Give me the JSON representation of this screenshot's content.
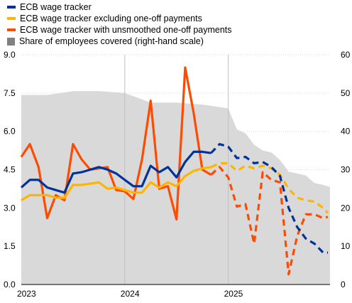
{
  "colors": {
    "wage": "#003299",
    "excl": "#ffb400",
    "unsm": "#ff4b00",
    "share": "#d9d9d9",
    "grid": "#d9d9d9",
    "separator": "#bfbfbf"
  },
  "chart_data": {
    "type": "line",
    "legend_position": "top-left",
    "grid": true,
    "x_tick_labels": [
      "2023",
      "2024",
      "2025"
    ],
    "x_range": [
      "2023-01",
      "2025-12"
    ],
    "y_left": {
      "range": [
        0.0,
        9.0
      ],
      "ticks": [
        "0.0",
        "1.5",
        "3.0",
        "4.5",
        "6.0",
        "7.5",
        "9.0"
      ]
    },
    "y_right": {
      "range": [
        0,
        60
      ],
      "ticks": [
        "0",
        "10",
        "20",
        "30",
        "40",
        "50",
        "60"
      ]
    },
    "series": [
      {
        "key": "wage",
        "name": "ECB wage tracker",
        "axis": "left",
        "style": "line",
        "points": [
          [
            "2023-01",
            3.8
          ],
          [
            "2023-02",
            4.1
          ],
          [
            "2023-03",
            4.1
          ],
          [
            "2023-04",
            3.8
          ],
          [
            "2023-05",
            3.7
          ],
          [
            "2023-06",
            3.6
          ],
          [
            "2023-07",
            4.35
          ],
          [
            "2023-08",
            4.4
          ],
          [
            "2023-09",
            4.5
          ],
          [
            "2023-10",
            4.6
          ],
          [
            "2023-11",
            4.5
          ],
          [
            "2023-12",
            4.35
          ],
          [
            "2024-01",
            4.1
          ],
          [
            "2024-02",
            3.85
          ],
          [
            "2024-03",
            3.85
          ],
          [
            "2024-04",
            4.65
          ],
          [
            "2024-05",
            4.4
          ],
          [
            "2024-06",
            4.6
          ],
          [
            "2024-07",
            4.2
          ],
          [
            "2024-08",
            4.8
          ],
          [
            "2024-09",
            5.2
          ],
          [
            "2024-10",
            5.2
          ],
          [
            "2024-11",
            5.15
          ]
        ]
      },
      {
        "key": "wage",
        "name": "",
        "axis": "left",
        "style": "dashed",
        "points": [
          [
            "2024-11",
            5.15
          ],
          [
            "2024-12",
            5.5
          ],
          [
            "2025-01",
            5.4
          ],
          [
            "2025-02",
            4.95
          ],
          [
            "2025-03",
            5.0
          ],
          [
            "2025-04",
            4.75
          ],
          [
            "2025-05",
            4.8
          ],
          [
            "2025-06",
            4.6
          ],
          [
            "2025-07",
            4.25
          ],
          [
            "2025-08",
            3.0
          ],
          [
            "2025-09",
            2.25
          ],
          [
            "2025-10",
            1.8
          ],
          [
            "2025-11",
            1.6
          ],
          [
            "2025-12",
            1.25
          ],
          [
            "2026-01",
            1.25
          ]
        ]
      },
      {
        "key": "excl",
        "name": "ECB wage tracker excluding one-off payments",
        "axis": "left",
        "style": "line",
        "points": [
          [
            "2023-01",
            3.3
          ],
          [
            "2023-02",
            3.5
          ],
          [
            "2023-03",
            3.5
          ],
          [
            "2023-04",
            3.5
          ],
          [
            "2023-05",
            3.4
          ],
          [
            "2023-06",
            3.4
          ],
          [
            "2023-07",
            3.9
          ],
          [
            "2023-08",
            3.9
          ],
          [
            "2023-09",
            3.95
          ],
          [
            "2023-10",
            4.0
          ],
          [
            "2023-11",
            3.75
          ],
          [
            "2023-12",
            3.8
          ],
          [
            "2024-01",
            3.7
          ],
          [
            "2024-02",
            3.6
          ],
          [
            "2024-03",
            3.6
          ],
          [
            "2024-04",
            4.0
          ],
          [
            "2024-05",
            3.8
          ],
          [
            "2024-06",
            4.0
          ],
          [
            "2024-07",
            3.85
          ],
          [
            "2024-08",
            4.25
          ],
          [
            "2024-09",
            4.45
          ],
          [
            "2024-10",
            4.55
          ],
          [
            "2024-11",
            4.6
          ]
        ]
      },
      {
        "key": "excl",
        "name": "",
        "axis": "left",
        "style": "dashed",
        "points": [
          [
            "2024-11",
            4.6
          ],
          [
            "2024-12",
            4.75
          ],
          [
            "2025-01",
            4.75
          ],
          [
            "2025-02",
            4.45
          ],
          [
            "2025-03",
            4.65
          ],
          [
            "2025-04",
            4.55
          ],
          [
            "2025-05",
            4.65
          ],
          [
            "2025-06",
            4.55
          ],
          [
            "2025-07",
            4.3
          ],
          [
            "2025-08",
            3.75
          ],
          [
            "2025-09",
            3.4
          ],
          [
            "2025-10",
            3.3
          ],
          [
            "2025-11",
            3.25
          ],
          [
            "2025-12",
            3.0
          ],
          [
            "2026-01",
            2.8
          ]
        ]
      },
      {
        "key": "unsm",
        "name": "ECB wage tracker with unsmoothed one-off payments",
        "axis": "left",
        "style": "line",
        "points": [
          [
            "2023-01",
            5.0
          ],
          [
            "2023-02",
            5.5
          ],
          [
            "2023-03",
            4.6
          ],
          [
            "2023-04",
            2.6
          ],
          [
            "2023-05",
            3.5
          ],
          [
            "2023-06",
            3.3
          ],
          [
            "2023-07",
            5.5
          ],
          [
            "2023-08",
            4.9
          ],
          [
            "2023-09",
            4.5
          ],
          [
            "2023-10",
            4.55
          ],
          [
            "2023-11",
            4.6
          ],
          [
            "2023-12",
            3.7
          ],
          [
            "2024-01",
            3.65
          ],
          [
            "2024-02",
            3.35
          ],
          [
            "2024-03",
            4.9
          ],
          [
            "2024-04",
            7.2
          ],
          [
            "2024-05",
            3.75
          ],
          [
            "2024-06",
            3.85
          ],
          [
            "2024-07",
            2.55
          ],
          [
            "2024-08",
            8.5
          ],
          [
            "2024-09",
            6.7
          ],
          [
            "2024-10",
            4.5
          ],
          [
            "2024-11",
            4.3
          ]
        ]
      },
      {
        "key": "unsm",
        "name": "",
        "axis": "left",
        "style": "dashed",
        "points": [
          [
            "2024-11",
            4.3
          ],
          [
            "2024-12",
            4.6
          ],
          [
            "2025-01",
            4.2
          ],
          [
            "2025-02",
            3.05
          ],
          [
            "2025-03",
            3.15
          ],
          [
            "2025-04",
            1.6
          ],
          [
            "2025-05",
            4.4
          ],
          [
            "2025-06",
            4.1
          ],
          [
            "2025-07",
            4.0
          ],
          [
            "2025-08",
            0.4
          ],
          [
            "2025-09",
            1.9
          ],
          [
            "2025-10",
            2.75
          ],
          [
            "2025-11",
            2.75
          ],
          [
            "2025-12",
            2.6
          ],
          [
            "2026-01",
            2.65
          ]
        ]
      },
      {
        "key": "share",
        "name": "Share of employees covered (right-hand scale)",
        "axis": "right",
        "style": "area",
        "points": [
          [
            "2023-01",
            49.5
          ],
          [
            "2023-04",
            49.5
          ],
          [
            "2023-07",
            50.5
          ],
          [
            "2023-10",
            50.5
          ],
          [
            "2024-01",
            50.0
          ],
          [
            "2024-04",
            47.5
          ],
          [
            "2024-07",
            47.5
          ],
          [
            "2024-10",
            47.0
          ],
          [
            "2025-01",
            46.0
          ],
          [
            "2025-02",
            40.5
          ],
          [
            "2025-03",
            39.5
          ],
          [
            "2025-04",
            36.5
          ],
          [
            "2025-05",
            35.0
          ],
          [
            "2025-06",
            34.5
          ],
          [
            "2025-07",
            32.5
          ],
          [
            "2025-08",
            29.5
          ],
          [
            "2025-09",
            29.0
          ],
          [
            "2025-10",
            28.5
          ],
          [
            "2025-11",
            26.5
          ],
          [
            "2025-12",
            26.0
          ],
          [
            "2026-01",
            25.5
          ]
        ]
      }
    ]
  }
}
